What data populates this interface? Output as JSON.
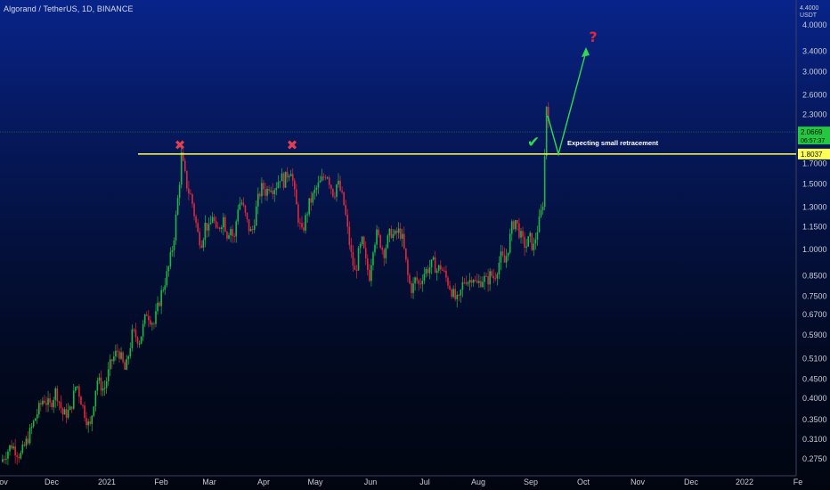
{
  "header": {
    "symbol_title": "Algorand / TetherUS, 1D, BINANCE"
  },
  "price_axis": {
    "currency_top": "4.4000",
    "currency": "USDT"
  },
  "chart_data": {
    "type": "candlestick",
    "title": "Algorand / TetherUS, 1D, BINANCE",
    "y_scale": "log",
    "ylim": [
      0.25,
      4.6
    ],
    "y_ticks": [
      4.0,
      3.4,
      3.0,
      2.6,
      2.3,
      1.7,
      1.5,
      1.3,
      1.15,
      1.0,
      0.85,
      0.75,
      0.67,
      0.59,
      0.51,
      0.45,
      0.4,
      0.35,
      0.31,
      0.275
    ],
    "y_tick_labels": [
      "4.0000",
      "3.4000",
      "3.0000",
      "2.6000",
      "2.3000",
      "1.7000",
      "1.5000",
      "1.3000",
      "1.1500",
      "1.0000",
      "0.8500",
      "0.7500",
      "0.6700",
      "0.5900",
      "0.5100",
      "0.4500",
      "0.4000",
      "0.3500",
      "0.3100",
      "0.2750"
    ],
    "x_ticks": [
      "ov",
      "Dec",
      "2021",
      "Feb",
      "Mar",
      "Apr",
      "May",
      "Jun",
      "Jul",
      "Aug",
      "Sep",
      "Oct",
      "Nov",
      "Dec",
      "2022",
      "Fe"
    ],
    "price_path": [
      [
        0,
        0.27
      ],
      [
        12,
        0.3
      ],
      [
        22,
        0.28
      ],
      [
        30,
        0.31
      ],
      [
        40,
        0.36
      ],
      [
        48,
        0.4
      ],
      [
        55,
        0.38
      ],
      [
        62,
        0.42
      ],
      [
        70,
        0.36
      ],
      [
        78,
        0.37
      ],
      [
        85,
        0.44
      ],
      [
        92,
        0.38
      ],
      [
        100,
        0.33
      ],
      [
        108,
        0.45
      ],
      [
        116,
        0.42
      ],
      [
        124,
        0.5
      ],
      [
        132,
        0.54
      ],
      [
        140,
        0.47
      ],
      [
        148,
        0.6
      ],
      [
        156,
        0.57
      ],
      [
        164,
        0.68
      ],
      [
        172,
        0.63
      ],
      [
        180,
        0.76
      ],
      [
        188,
        0.88
      ],
      [
        194,
        1.05
      ],
      [
        198,
        1.3
      ],
      [
        201,
        1.55
      ],
      [
        203,
        1.8
      ],
      [
        206,
        1.62
      ],
      [
        210,
        1.45
      ],
      [
        214,
        1.38
      ],
      [
        218,
        1.22
      ],
      [
        222,
        1.08
      ],
      [
        226,
        1.05
      ],
      [
        230,
        1.18
      ],
      [
        234,
        1.12
      ],
      [
        238,
        1.25
      ],
      [
        242,
        1.1
      ],
      [
        246,
        1.16
      ],
      [
        250,
        1.22
      ],
      [
        254,
        1.1
      ],
      [
        258,
        1.15
      ],
      [
        262,
        1.05
      ],
      [
        266,
        1.3
      ],
      [
        270,
        1.35
      ],
      [
        274,
        1.25
      ],
      [
        278,
        1.15
      ],
      [
        282,
        1.1
      ],
      [
        286,
        1.25
      ],
      [
        290,
        1.4
      ],
      [
        294,
        1.48
      ],
      [
        298,
        1.42
      ],
      [
        302,
        1.5
      ],
      [
        306,
        1.46
      ],
      [
        310,
        1.5
      ],
      [
        314,
        1.58
      ],
      [
        318,
        1.52
      ],
      [
        322,
        1.6
      ],
      [
        326,
        1.65
      ],
      [
        330,
        1.4
      ],
      [
        334,
        1.22
      ],
      [
        338,
        1.1
      ],
      [
        342,
        1.2
      ],
      [
        346,
        1.32
      ],
      [
        350,
        1.38
      ],
      [
        354,
        1.45
      ],
      [
        358,
        1.5
      ],
      [
        362,
        1.55
      ],
      [
        366,
        1.62
      ],
      [
        370,
        1.5
      ],
      [
        374,
        1.4
      ],
      [
        378,
        1.52
      ],
      [
        382,
        1.42
      ],
      [
        386,
        1.3
      ],
      [
        390,
        1.1
      ],
      [
        394,
        0.95
      ],
      [
        398,
        0.86
      ],
      [
        402,
        0.98
      ],
      [
        406,
        1.05
      ],
      [
        410,
        0.92
      ],
      [
        414,
        0.85
      ],
      [
        418,
        1.02
      ],
      [
        422,
        1.1
      ],
      [
        426,
        1.05
      ],
      [
        430,
        0.98
      ],
      [
        434,
        1.05
      ],
      [
        438,
        1.12
      ],
      [
        442,
        1.08
      ],
      [
        446,
        1.12
      ],
      [
        450,
        1.1
      ],
      [
        454,
        0.96
      ],
      [
        458,
        0.82
      ],
      [
        462,
        0.78
      ],
      [
        466,
        0.84
      ],
      [
        470,
        0.8
      ],
      [
        474,
        0.86
      ],
      [
        478,
        0.88
      ],
      [
        482,
        0.9
      ],
      [
        486,
        0.92
      ],
      [
        490,
        0.88
      ],
      [
        494,
        0.9
      ],
      [
        498,
        0.86
      ],
      [
        502,
        0.82
      ],
      [
        506,
        0.78
      ],
      [
        510,
        0.74
      ],
      [
        514,
        0.72
      ],
      [
        518,
        0.8
      ],
      [
        522,
        0.84
      ],
      [
        526,
        0.82
      ],
      [
        530,
        0.86
      ],
      [
        534,
        0.8
      ],
      [
        538,
        0.82
      ],
      [
        542,
        0.84
      ],
      [
        546,
        0.82
      ],
      [
        550,
        0.86
      ],
      [
        554,
        0.84
      ],
      [
        558,
        0.9
      ],
      [
        562,
        0.96
      ],
      [
        566,
        0.92
      ],
      [
        570,
        1.02
      ],
      [
        574,
        1.15
      ],
      [
        578,
        1.2
      ],
      [
        582,
        1.12
      ],
      [
        586,
        1.05
      ],
      [
        590,
        1.02
      ],
      [
        594,
        1.08
      ],
      [
        598,
        1.0
      ],
      [
        602,
        1.12
      ],
      [
        606,
        1.22
      ],
      [
        609,
        1.35
      ],
      [
        611,
        1.82
      ],
      [
        613,
        2.45
      ],
      [
        615,
        2.2
      ],
      [
        617,
        2.05
      ]
    ],
    "horizontal_lines": [
      {
        "price": 1.8037,
        "label": "1.8037",
        "color": "#ffff55"
      },
      {
        "price": 2.0669,
        "label": "2.0669",
        "sublabel": "06:57:37",
        "color": "#23c840"
      }
    ],
    "annotations": {
      "text": "Expecting small retracement",
      "question_mark": "?",
      "check_mark": "✔",
      "cross_mark": "✖"
    },
    "colors": {
      "up": "#1fb847",
      "down": "#e0283a",
      "resistance": "#ffff55",
      "arrow": "#2bdc4c",
      "last_price": "#23c840",
      "marker_red": "#e04050"
    }
  }
}
